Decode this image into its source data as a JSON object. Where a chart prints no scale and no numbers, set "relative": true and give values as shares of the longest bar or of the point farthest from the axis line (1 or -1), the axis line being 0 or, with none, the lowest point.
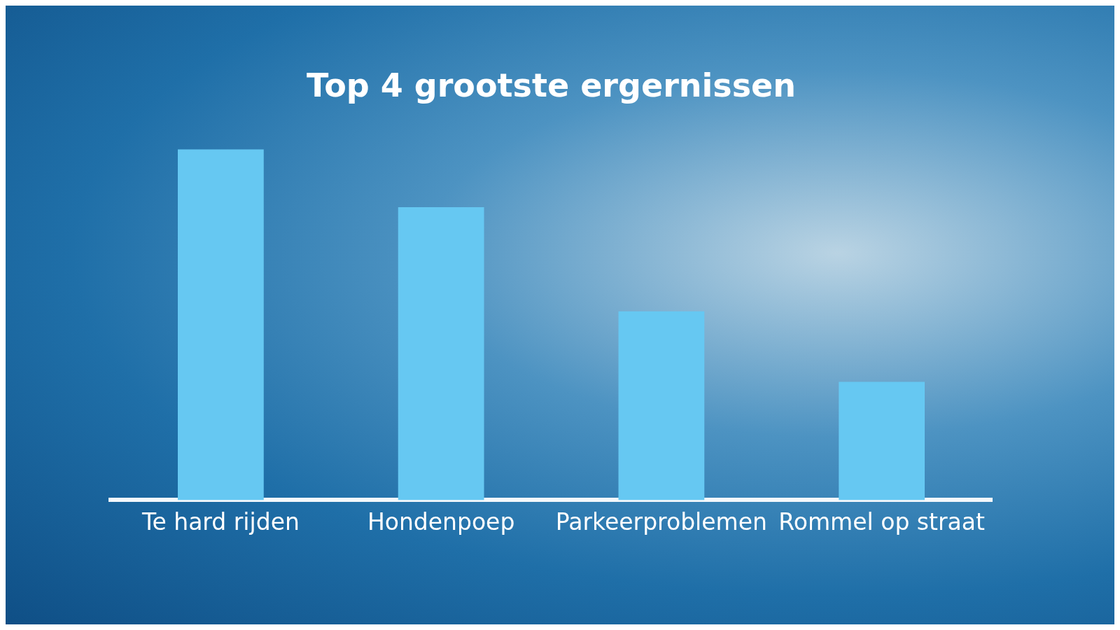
{
  "chart_data": {
    "type": "bar",
    "title": "Top 4 grootste ergernissen",
    "categories": [
      "Te hard rijden",
      "Hondenpoep",
      "Parkeerproblemen",
      "Rommel op straat"
    ],
    "values": [
      1,
      0.835,
      0.538,
      0.337
    ],
    "color": "#66c8f2",
    "relative": true,
    "legend": false
  }
}
